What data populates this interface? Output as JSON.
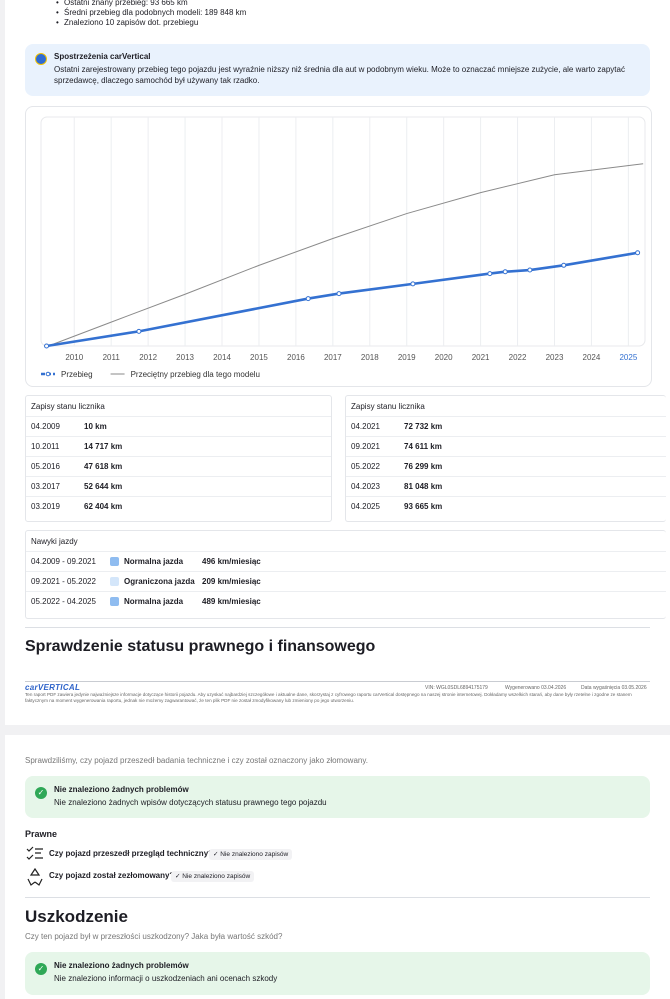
{
  "summary": [
    "Ostatni znany przebieg: 93 665 km",
    "Średni przebieg dla podobnych modeli: 189 848 km",
    "Znaleziono 10 zapisów dot. przebiegu"
  ],
  "insight": {
    "title": "Spostrzeżenia carVertical",
    "lines": [
      "Ostatni zarejestrowany przebieg tego pojazdu jest wyraźnie niższy niż średnia dla aut w podobnym wieku. Może to oznaczać mniejsze zużycie, ale warto zapytać",
      "sprzedawcę, dlaczego samochód był używany tak rzadko."
    ]
  },
  "chart": {
    "type": "line",
    "xlim": [
      2009.1,
      2025.45
    ],
    "xticks": [
      2010,
      2011,
      2012,
      2013,
      2014,
      2015,
      2016,
      2017,
      2018,
      2019,
      2020,
      2021,
      2022,
      2023,
      2024,
      2025
    ],
    "highlight_last_xtick": true,
    "ylim": [
      0,
      230000
    ],
    "grid": true,
    "series": [
      {
        "name": "Przebieg",
        "color": "#3471d1",
        "x": [
          "04.2009",
          "10.2011",
          "05.2016",
          "03.2017",
          "03.2019",
          "04.2021",
          "09.2021",
          "05.2022",
          "04.2023",
          "04.2025"
        ],
        "values": [
          10,
          14717,
          47618,
          52644,
          62404,
          72732,
          74611,
          76299,
          81048,
          93665
        ]
      },
      {
        "name": "Przeciętny przebieg dla tego modelu",
        "color": "#8a8a8a",
        "x": [
          2009.3,
          2011,
          2013,
          2015,
          2017,
          2019,
          2021,
          2023,
          2025.4
        ],
        "values": [
          0,
          24000,
          52000,
          81000,
          108000,
          133000,
          154000,
          172000,
          183000
        ]
      }
    ]
  },
  "records": [
    {
      "title": "Zapisy stanu licznika",
      "rows": [
        [
          "04.2009",
          "10 km"
        ],
        [
          "10.2011",
          "14 717 km"
        ],
        [
          "05.2016",
          "47 618 km"
        ],
        [
          "03.2017",
          "52 644 km"
        ],
        [
          "03.2019",
          "62 404 km"
        ]
      ]
    },
    {
      "title": "Zapisy stanu licznika",
      "rows": [
        [
          "04.2021",
          "72 732 km"
        ],
        [
          "09.2021",
          "74 611 km"
        ],
        [
          "05.2022",
          "76 299 km"
        ],
        [
          "04.2023",
          "81 048 km"
        ],
        [
          "04.2025",
          "93 665 km"
        ]
      ]
    }
  ],
  "driving": {
    "title": "Nawyki jazdy",
    "rows": [
      {
        "period": "04.2009 - 09.2021",
        "color": "#8fbcf0",
        "label": "Normalna jazda",
        "rate": "496 km/miesiąc"
      },
      {
        "period": "09.2021 - 05.2022",
        "color": "#d4e6fa",
        "label": "Ograniczona jazda",
        "rate": "209 km/miesiąc"
      },
      {
        "period": "05.2022 - 04.2025",
        "color": "#8fbcf0",
        "label": "Normalna jazda",
        "rate": "489 km/miesiąc"
      }
    ]
  },
  "legal_heading": "Sprawdzenie statusu prawnego i finansowego",
  "footer": {
    "logo": "carVERTICAL",
    "vin": "VIN: WGL0SDL6894175179",
    "generated": "Wygenerowano 03.04.2026",
    "expires": "Data wygaśnięcia 03.05.2026",
    "note": "Ten raport PDF zawiera jedynie najważniejsze informacje dotyczące historii pojazdu. Aby uzyskać najbardziej szczegółowe i aktualne dane, skorzystaj z cyfrowego raportu carVertical dostępnego na naszej stronie internetowej. Dokładamy wszelkich starań, aby dane były rzetelne i zgodne ze stanem faktycznym na moment wygenerowania raportu, jednak nie możemy zagwarantować, że ten plik PDF nie został zmodyfikowany lub zmieniony po jego utworzeniu."
  },
  "legal": {
    "intro": "Sprawdziliśmy, czy pojazd przeszedł badania techniczne i czy został oznaczony jako złomowany.",
    "ok_title": "Nie znaleziono żadnych problemów",
    "ok_text": "Nie znaleziono żadnych wpisów dotyczących statusu prawnego tego pojazdu",
    "section": "Prawne",
    "checks": [
      {
        "question": "Czy pojazd przeszedł przegląd techniczny?",
        "badge": "Nie znaleziono zapisów"
      },
      {
        "question": "Czy pojazd został zezłomowany?",
        "badge": "Nie znaleziono zapisów"
      }
    ]
  },
  "damage": {
    "heading": "Uszkodzenie",
    "intro": "Czy ten pojazd był w przeszłości uszkodzony? Jaka była wartość szkód?",
    "ok_title": "Nie znaleziono żadnych problemów",
    "ok_text": "Nie znaleziono informacji o uszkodzeniach ani ocenach szkody"
  }
}
